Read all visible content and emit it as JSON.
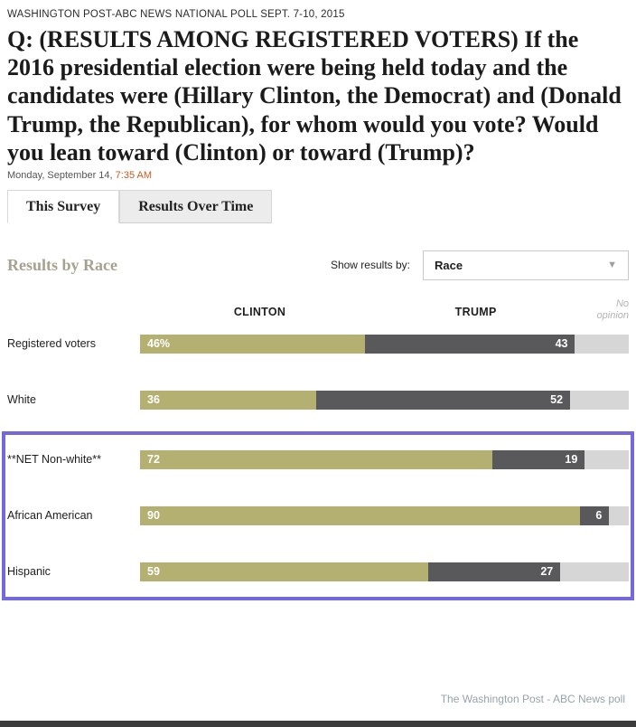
{
  "header": {
    "kicker": "WASHINGTON POST-ABC NEWS NATIONAL POLL SEPT. 7-10, 2015",
    "question": "Q: (RESULTS AMONG REGISTERED VOTERS) If the 2016 presidential election were being held today and the candidates were (Hillary Clinton, the Democrat) and (Donald Trump, the Republican), for whom would you vote? Would you lean toward (Clinton) or toward (Trump)?",
    "date_prefix": "Monday, September 14, ",
    "time": "7:35 AM"
  },
  "tabs": [
    {
      "label": "This Survey",
      "active": true
    },
    {
      "label": "Results Over Time",
      "active": false
    }
  ],
  "controls": {
    "section_title": "Results by Race",
    "show_results_label": "Show results by:",
    "dropdown_value": "Race"
  },
  "chart_data": {
    "type": "bar",
    "title": "Results by Race",
    "column_headers": [
      "CLINTON",
      "TRUMP"
    ],
    "no_opinion_label": "No opinion",
    "categories": [
      "Registered voters",
      "White",
      "**NET Non-white**",
      "African American",
      "Hispanic"
    ],
    "series": [
      {
        "name": "Clinton",
        "values": [
          46,
          36,
          72,
          90,
          59
        ],
        "color": "#b3b072"
      },
      {
        "name": "Trump",
        "values": [
          43,
          52,
          19,
          6,
          27
        ],
        "color": "#59595b"
      }
    ],
    "value_labels": {
      "clinton": [
        "46%",
        "36",
        "72",
        "90",
        "59"
      ],
      "trump": [
        "43",
        "52",
        "19",
        "6",
        "27"
      ]
    },
    "no_opinion_color": "#d6d6d6",
    "highlighted_categories": [
      "**NET Non-white**",
      "African American",
      "Hispanic"
    ],
    "highlight_color": "#7568dd",
    "xlim": [
      0,
      100
    ],
    "legend_position": "top"
  },
  "footer": {
    "credit": "The Washington Post - ABC News poll"
  }
}
